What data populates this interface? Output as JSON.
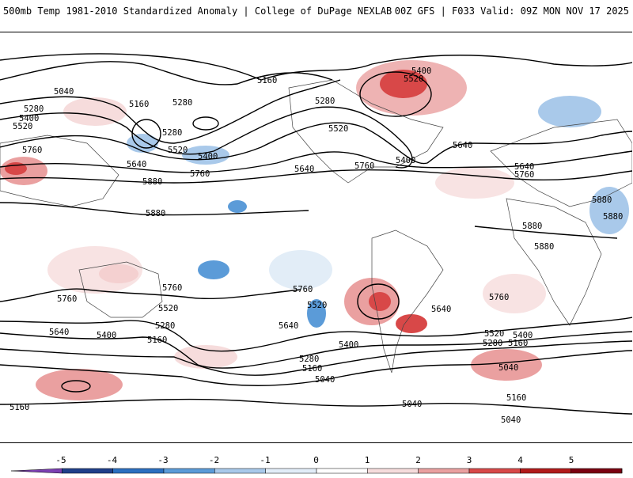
{
  "header": {
    "left_title": "500mb Temp 1981-2010 Standardized Anomaly | College of DuPage NEXLAB",
    "right_title": "00Z GFS | F033 Valid: 09Z MON NOV 17 2025"
  },
  "contour_labels": [
    "5040",
    "5160",
    "5280",
    "5400",
    "5520",
    "5640",
    "5760",
    "5880"
  ],
  "colorbar": {
    "ticks": [
      "-5",
      "-4",
      "-3",
      "-2",
      "-1",
      "0",
      "1",
      "2",
      "3",
      "4",
      "5"
    ],
    "colors": [
      "#7b3fb2",
      "#1f3f8a",
      "#2b6fc0",
      "#5b9bd8",
      "#a9c9ea",
      "#e2edf8",
      "#ffffff",
      "#f6dcdc",
      "#eaa0a0",
      "#d84848",
      "#b21a1a",
      "#7a0010",
      "#f4c020"
    ]
  }
}
